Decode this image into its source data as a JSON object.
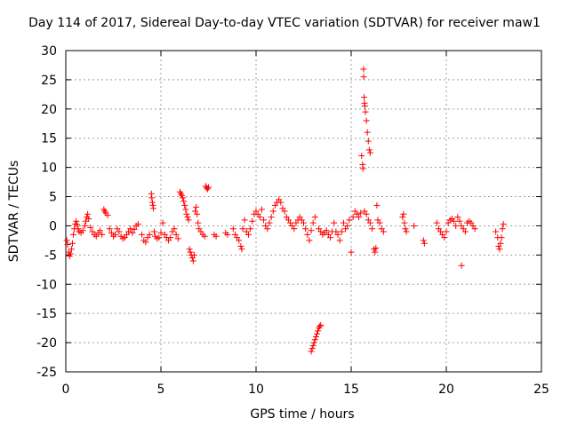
{
  "chart_data": {
    "type": "scatter",
    "title": "Day 114 of 2017, Sidereal Day-to-day VTEC variation (SDTVAR) for receiver maw1",
    "xlabel": "GPS time / hours",
    "ylabel": "SDTVAR / TECUs",
    "xlim": [
      0,
      25
    ],
    "ylim": [
      -25,
      30
    ],
    "xticks": [
      "0",
      "5",
      "10",
      "15",
      "20",
      "25"
    ],
    "yticks": [
      "30",
      "25",
      "20",
      "15",
      "10",
      "5",
      "0",
      "-5",
      "-10",
      "-15",
      "-20",
      "-25"
    ],
    "grid": true,
    "marker": "+",
    "color": "#ff0000",
    "series": [
      {
        "name": "SDTVAR",
        "points": [
          [
            0.05,
            -2.5
          ],
          [
            0.1,
            -3.2
          ],
          [
            0.15,
            -4.5
          ],
          [
            0.2,
            -5.2
          ],
          [
            0.25,
            -4.8
          ],
          [
            0.3,
            -4.0
          ],
          [
            0.35,
            -3.0
          ],
          [
            0.4,
            -1.5
          ],
          [
            0.45,
            -0.5
          ],
          [
            0.5,
            0.3
          ],
          [
            0.55,
            0.8
          ],
          [
            0.6,
            0.2
          ],
          [
            0.65,
            -0.5
          ],
          [
            0.7,
            -1.0
          ],
          [
            0.8,
            -1.2
          ],
          [
            0.9,
            -0.8
          ],
          [
            1.0,
            0.0
          ],
          [
            1.05,
            0.8
          ],
          [
            1.1,
            1.5
          ],
          [
            1.15,
            2.0
          ],
          [
            1.2,
            1.2
          ],
          [
            1.3,
            -0.3
          ],
          [
            1.4,
            -1.0
          ],
          [
            1.5,
            -1.5
          ],
          [
            1.6,
            -1.8
          ],
          [
            1.7,
            -1.2
          ],
          [
            1.8,
            -0.8
          ],
          [
            1.9,
            -1.5
          ],
          [
            2.0,
            2.8
          ],
          [
            2.05,
            2.5
          ],
          [
            2.1,
            2.2
          ],
          [
            2.2,
            1.8
          ],
          [
            2.3,
            -0.5
          ],
          [
            2.4,
            -1.2
          ],
          [
            2.5,
            -1.8
          ],
          [
            2.6,
            -1.5
          ],
          [
            2.7,
            -0.5
          ],
          [
            2.8,
            -1.0
          ],
          [
            2.9,
            -1.8
          ],
          [
            3.0,
            -2.2
          ],
          [
            3.1,
            -2.0
          ],
          [
            3.2,
            -1.5
          ],
          [
            3.3,
            -1.0
          ],
          [
            3.4,
            -0.5
          ],
          [
            3.5,
            -1.2
          ],
          [
            3.6,
            -0.6
          ],
          [
            3.7,
            0.0
          ],
          [
            3.8,
            0.3
          ],
          [
            4.0,
            -1.5
          ],
          [
            4.1,
            -2.5
          ],
          [
            4.2,
            -2.8
          ],
          [
            4.3,
            -2.0
          ],
          [
            4.4,
            -1.5
          ],
          [
            4.5,
            5.5
          ],
          [
            4.52,
            4.8
          ],
          [
            4.55,
            4.0
          ],
          [
            4.58,
            3.5
          ],
          [
            4.6,
            3.0
          ],
          [
            4.65,
            -1.0
          ],
          [
            4.7,
            -1.8
          ],
          [
            4.8,
            -2.2
          ],
          [
            4.9,
            -2.0
          ],
          [
            5.0,
            -1.2
          ],
          [
            5.1,
            0.5
          ],
          [
            5.2,
            -1.5
          ],
          [
            5.3,
            -2.0
          ],
          [
            5.4,
            -2.5
          ],
          [
            5.5,
            -2.0
          ],
          [
            5.6,
            -1.0
          ],
          [
            5.7,
            -0.5
          ],
          [
            5.8,
            -1.5
          ],
          [
            5.9,
            -2.2
          ],
          [
            6.0,
            5.8
          ],
          [
            6.05,
            5.5
          ],
          [
            6.1,
            5.2
          ],
          [
            6.15,
            4.8
          ],
          [
            6.2,
            4.2
          ],
          [
            6.25,
            3.5
          ],
          [
            6.3,
            2.8
          ],
          [
            6.35,
            2.0
          ],
          [
            6.4,
            1.5
          ],
          [
            6.45,
            1.0
          ],
          [
            6.5,
            -4.0
          ],
          [
            6.55,
            -4.5
          ],
          [
            6.6,
            -5.0
          ],
          [
            6.65,
            -5.5
          ],
          [
            6.7,
            -6.0
          ],
          [
            6.75,
            -5.0
          ],
          [
            6.8,
            2.5
          ],
          [
            6.85,
            3.2
          ],
          [
            6.9,
            2.0
          ],
          [
            6.95,
            0.5
          ],
          [
            7.0,
            -0.5
          ],
          [
            7.1,
            -1.0
          ],
          [
            7.2,
            -1.5
          ],
          [
            7.3,
            -1.8
          ],
          [
            7.35,
            6.8
          ],
          [
            7.4,
            6.5
          ],
          [
            7.45,
            6.3
          ],
          [
            7.5,
            6.6
          ],
          [
            7.8,
            -1.5
          ],
          [
            7.9,
            -1.8
          ],
          [
            8.4,
            -1.2
          ],
          [
            8.5,
            -1.5
          ],
          [
            8.8,
            -0.5
          ],
          [
            8.9,
            -1.5
          ],
          [
            9.0,
            -2.0
          ],
          [
            9.1,
            -2.5
          ],
          [
            9.2,
            -3.5
          ],
          [
            9.25,
            -4.0
          ],
          [
            9.3,
            -0.5
          ],
          [
            9.4,
            1.0
          ],
          [
            9.5,
            -1.0
          ],
          [
            9.6,
            -1.5
          ],
          [
            9.7,
            -0.5
          ],
          [
            9.8,
            0.8
          ],
          [
            9.9,
            2.0
          ],
          [
            10.0,
            2.5
          ],
          [
            10.1,
            2.0
          ],
          [
            10.2,
            1.5
          ],
          [
            10.3,
            2.8
          ],
          [
            10.4,
            1.0
          ],
          [
            10.5,
            0.0
          ],
          [
            10.6,
            -0.5
          ],
          [
            10.7,
            0.5
          ],
          [
            10.8,
            1.5
          ],
          [
            10.9,
            2.5
          ],
          [
            11.0,
            3.5
          ],
          [
            11.1,
            4.0
          ],
          [
            11.2,
            4.5
          ],
          [
            11.3,
            4.0
          ],
          [
            11.4,
            3.0
          ],
          [
            11.5,
            2.5
          ],
          [
            11.6,
            1.5
          ],
          [
            11.7,
            1.0
          ],
          [
            11.8,
            0.5
          ],
          [
            11.9,
            0.0
          ],
          [
            12.0,
            -0.5
          ],
          [
            12.1,
            0.5
          ],
          [
            12.2,
            1.0
          ],
          [
            12.3,
            1.5
          ],
          [
            12.4,
            1.0
          ],
          [
            12.5,
            0.5
          ],
          [
            12.6,
            -0.5
          ],
          [
            12.7,
            -1.5
          ],
          [
            12.8,
            -2.5
          ],
          [
            12.9,
            -0.8
          ],
          [
            13.0,
            0.5
          ],
          [
            13.1,
            1.5
          ],
          [
            12.9,
            -21.5
          ],
          [
            12.95,
            -21.0
          ],
          [
            13.0,
            -20.5
          ],
          [
            13.05,
            -20.0
          ],
          [
            13.1,
            -19.5
          ],
          [
            13.15,
            -19.0
          ],
          [
            13.2,
            -18.5
          ],
          [
            13.25,
            -18.0
          ],
          [
            13.3,
            -17.5
          ],
          [
            13.35,
            -17.2
          ],
          [
            13.4,
            -17.0
          ],
          [
            13.3,
            -0.5
          ],
          [
            13.4,
            -1.0
          ],
          [
            13.5,
            -1.5
          ],
          [
            13.6,
            -1.2
          ],
          [
            13.7,
            -0.8
          ],
          [
            13.8,
            -1.5
          ],
          [
            13.9,
            -2.0
          ],
          [
            14.0,
            -1.0
          ],
          [
            14.1,
            0.5
          ],
          [
            14.2,
            -1.0
          ],
          [
            14.3,
            -1.5
          ],
          [
            14.4,
            -2.5
          ],
          [
            14.5,
            -1.0
          ],
          [
            14.6,
            0.5
          ],
          [
            14.7,
            -0.5
          ],
          [
            14.8,
            0.0
          ],
          [
            14.9,
            1.0
          ],
          [
            15.0,
            -4.5
          ],
          [
            15.1,
            1.5
          ],
          [
            15.2,
            2.5
          ],
          [
            15.3,
            2.0
          ],
          [
            15.4,
            1.5
          ],
          [
            15.5,
            2.2
          ],
          [
            15.55,
            12.0
          ],
          [
            15.6,
            10.5
          ],
          [
            15.62,
            9.8
          ],
          [
            15.65,
            26.8
          ],
          [
            15.66,
            25.5
          ],
          [
            15.68,
            22.0
          ],
          [
            15.7,
            21.0
          ],
          [
            15.72,
            20.5
          ],
          [
            15.75,
            19.5
          ],
          [
            15.8,
            18.0
          ],
          [
            15.85,
            16.0
          ],
          [
            15.9,
            14.5
          ],
          [
            15.95,
            13.0
          ],
          [
            16.0,
            12.5
          ],
          [
            15.7,
            2.5
          ],
          [
            15.8,
            2.0
          ],
          [
            15.9,
            1.0
          ],
          [
            16.0,
            0.5
          ],
          [
            16.1,
            -0.5
          ],
          [
            16.2,
            -4.0
          ],
          [
            16.25,
            -4.5
          ],
          [
            16.3,
            -3.8
          ],
          [
            16.35,
            3.5
          ],
          [
            16.4,
            1.0
          ],
          [
            16.5,
            0.5
          ],
          [
            16.6,
            -0.5
          ],
          [
            16.7,
            -1.0
          ],
          [
            17.7,
            1.5
          ],
          [
            17.75,
            2.0
          ],
          [
            17.8,
            0.5
          ],
          [
            17.85,
            -0.5
          ],
          [
            17.9,
            -1.0
          ],
          [
            18.3,
            0.0
          ],
          [
            18.8,
            -2.5
          ],
          [
            18.85,
            -3.0
          ],
          [
            19.5,
            0.5
          ],
          [
            19.6,
            -0.5
          ],
          [
            19.7,
            -1.0
          ],
          [
            19.8,
            -1.5
          ],
          [
            19.9,
            -2.0
          ],
          [
            20.0,
            -1.0
          ],
          [
            20.1,
            0.5
          ],
          [
            20.2,
            1.0
          ],
          [
            20.3,
            1.2
          ],
          [
            20.4,
            0.8
          ],
          [
            20.5,
            0.0
          ],
          [
            20.6,
            1.5
          ],
          [
            20.7,
            0.8
          ],
          [
            20.8,
            0.0
          ],
          [
            20.9,
            -0.5
          ],
          [
            21.0,
            -1.0
          ],
          [
            20.8,
            -6.8
          ],
          [
            21.1,
            0.5
          ],
          [
            21.2,
            0.8
          ],
          [
            21.3,
            0.5
          ],
          [
            21.4,
            0.0
          ],
          [
            21.5,
            -0.5
          ],
          [
            22.6,
            -1.0
          ],
          [
            22.7,
            -2.0
          ],
          [
            22.75,
            -3.5
          ],
          [
            22.8,
            -4.0
          ],
          [
            22.85,
            -3.0
          ],
          [
            22.9,
            -2.0
          ],
          [
            22.95,
            -0.5
          ],
          [
            23.0,
            0.3
          ]
        ]
      }
    ]
  }
}
